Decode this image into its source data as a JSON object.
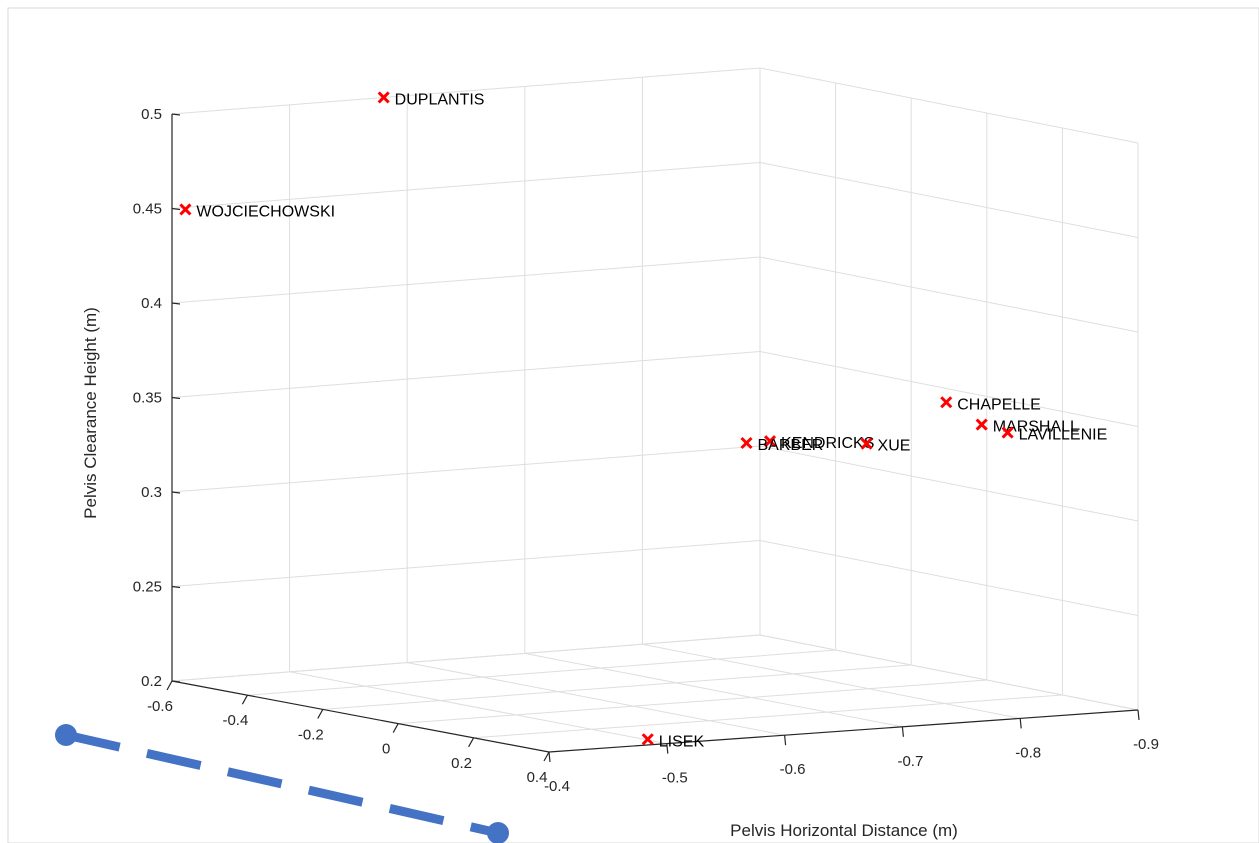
{
  "colors": {
    "marker": "#ff0000",
    "annotation": "#4472c4",
    "grid": "#dedede",
    "axis": "#262626"
  },
  "annotation": {
    "type": "dashed-line-with-dot-endpoints",
    "color": "#4472c4"
  },
  "chart_data": {
    "type": "scatter3d",
    "title": "",
    "xlabel": "",
    "ylabel": "Pelvis Horizontal Distance (m)",
    "zlabel": "Pelvis Clearance Height (m)",
    "xlim": [
      -0.6,
      0.4
    ],
    "ylim": [
      -0.4,
      -0.9
    ],
    "zlim": [
      0.2,
      0.5
    ],
    "x_ticks": [
      "-0.6",
      "-0.4",
      "-0.2",
      "0",
      "0.2",
      "0.4"
    ],
    "y_ticks": [
      "-0.4",
      "-0.5",
      "-0.6",
      "-0.7",
      "-0.8",
      "-0.9"
    ],
    "z_ticks": [
      "0.2",
      "0.25",
      "0.3",
      "0.35",
      "0.4",
      "0.45",
      "0.5"
    ],
    "grid": true,
    "marker": "x",
    "points": [
      {
        "label": "DUPLANTIS",
        "x": -0.6,
        "y": -0.58,
        "z": 0.5
      },
      {
        "label": "WOJCIECHOWSKI",
        "x": -0.58,
        "y": -0.405,
        "z": 0.45
      },
      {
        "label": "KENDRICKS",
        "x": 0.3,
        "y": -0.62,
        "z": 0.35
      },
      {
        "label": "BARBER",
        "x": 0.3,
        "y": -0.6,
        "z": 0.35
      },
      {
        "label": "XUE",
        "x": 0.4,
        "y": -0.67,
        "z": 0.35
      },
      {
        "label": "CHAPELLE",
        "x": 0.05,
        "y": -0.85,
        "z": 0.35
      },
      {
        "label": "MARSHALL",
        "x": 0.3,
        "y": -0.8,
        "z": 0.35
      },
      {
        "label": "LAVILLENIE",
        "x": 0.4,
        "y": -0.79,
        "z": 0.35
      },
      {
        "label": "LISEK",
        "x": 0.35,
        "y": -0.5,
        "z": 0.2
      }
    ]
  }
}
